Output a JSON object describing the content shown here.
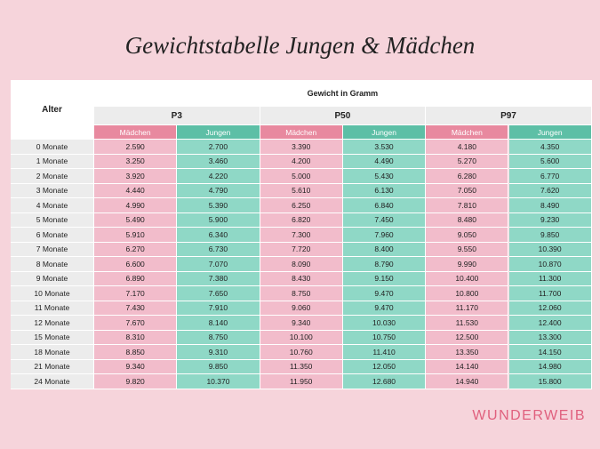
{
  "title": "Gewichtstabelle Jungen & Mädchen",
  "table": {
    "row_header": "Alter",
    "group_header": "Gewicht in Gramm",
    "percentiles": [
      "P3",
      "P50",
      "P97"
    ],
    "sub_headers": [
      "Mädchen",
      "Jungen"
    ],
    "rows": [
      [
        "0 Monate",
        "2.590",
        "2.700",
        "3.390",
        "3.530",
        "4.180",
        "4.350"
      ],
      [
        "1 Monate",
        "3.250",
        "3.460",
        "4.200",
        "4.490",
        "5.270",
        "5.600"
      ],
      [
        "2 Monate",
        "3.920",
        "4.220",
        "5.000",
        "5.430",
        "6.280",
        "6.770"
      ],
      [
        "3 Monate",
        "4.440",
        "4.790",
        "5.610",
        "6.130",
        "7.050",
        "7.620"
      ],
      [
        "4 Monate",
        "4.990",
        "5.390",
        "6.250",
        "6.840",
        "7.810",
        "8.490"
      ],
      [
        "5 Monate",
        "5.490",
        "5.900",
        "6.820",
        "7.450",
        "8.480",
        "9.230"
      ],
      [
        "6 Monate",
        "5.910",
        "6.340",
        "7.300",
        "7.960",
        "9.050",
        "9.850"
      ],
      [
        "7 Monate",
        "6.270",
        "6.730",
        "7.720",
        "8.400",
        "9.550",
        "10.390"
      ],
      [
        "8 Monate",
        "6.600",
        "7.070",
        "8.090",
        "8.790",
        "9.990",
        "10.870"
      ],
      [
        "9 Monate",
        "6.890",
        "7.380",
        "8.430",
        "9.150",
        "10.400",
        "11.300"
      ],
      [
        "10 Monate",
        "7.170",
        "7.650",
        "8.750",
        "9.470",
        "10.800",
        "11.700"
      ],
      [
        "11 Monate",
        "7.430",
        "7.910",
        "9.060",
        "9.470",
        "11.170",
        "12.060"
      ],
      [
        "12 Monate",
        "7.670",
        "8.140",
        "9.340",
        "10.030",
        "11.530",
        "12.400"
      ],
      [
        "15 Monate",
        "8.310",
        "8.750",
        "10.100",
        "10.750",
        "12.500",
        "13.300"
      ],
      [
        "18 Monate",
        "8.850",
        "9.310",
        "10.760",
        "11.410",
        "13.350",
        "14.150"
      ],
      [
        "21 Monate",
        "9.340",
        "9.850",
        "11.350",
        "12.050",
        "14.140",
        "14.980"
      ],
      [
        "24 Monate",
        "9.820",
        "10.370",
        "11.950",
        "12.680",
        "14.940",
        "15.800"
      ]
    ]
  },
  "brand": "WUNDERWEIB"
}
